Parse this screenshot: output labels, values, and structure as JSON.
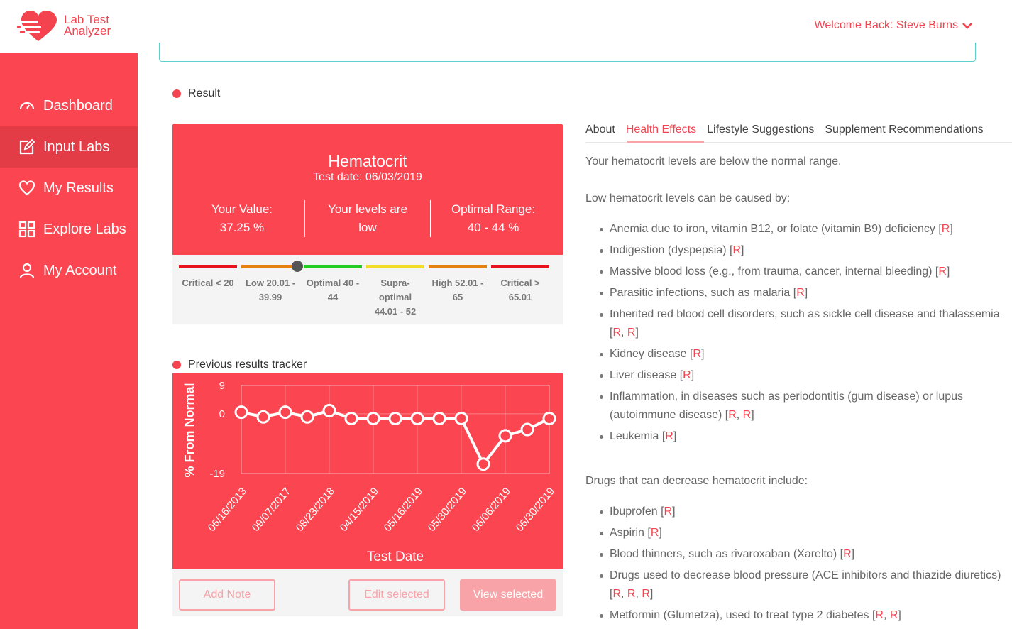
{
  "app": {
    "logo_line1": "Lab Test",
    "logo_line2": "Analyzer",
    "welcome": "Welcome Back: Steve Burns"
  },
  "sidebar": {
    "items": [
      {
        "label": "Dashboard",
        "icon": "gauge-icon"
      },
      {
        "label": "Input Labs",
        "icon": "edit-icon"
      },
      {
        "label": "My Results",
        "icon": "heart-icon"
      },
      {
        "label": "Explore Labs",
        "icon": "grid-icon"
      },
      {
        "label": "My Account",
        "icon": "user-icon"
      }
    ],
    "active_index": 1
  },
  "result": {
    "section_label": "Result",
    "title": "Hematocrit",
    "test_date": "Test date: 06/03/2019",
    "your_value_label": "Your Value:",
    "your_value": "37.25 %",
    "levels_label": "Your levels are",
    "levels_value": "low",
    "optimal_label": "Optimal Range:",
    "optimal_value": "40 - 44 %",
    "ranges": [
      {
        "l1": "Critical < 20",
        "l2": "",
        "l3": "",
        "color": "#e8131f"
      },
      {
        "l1": "Low 20.01 -",
        "l2": "39.99",
        "l3": "",
        "color": "#e5830e"
      },
      {
        "l1": "Optimal 40 -",
        "l2": "44",
        "l3": "",
        "color": "#22cc22"
      },
      {
        "l1": "Supra-",
        "l2": "optimal",
        "l3": "44.01 - 52",
        "color": "#f2dc2a"
      },
      {
        "l1": "High 52.01 -",
        "l2": "65",
        "l3": "",
        "color": "#e5830e"
      },
      {
        "l1": "Critical >",
        "l2": "65.01",
        "l3": "",
        "color": "#e8131f"
      }
    ]
  },
  "tracker": {
    "section_label": "Previous results tracker",
    "add_note": "Add Note",
    "edit_selected": "Edit selected",
    "view_selected": "View selected"
  },
  "chart_data": {
    "type": "line",
    "ylabel": "% From Normal",
    "xlabel": "Test Date",
    "yticks": [
      "9",
      "0",
      "-19"
    ],
    "ylim": [
      -19,
      9
    ],
    "xticks": [
      "06/16/2013",
      "09/07/2017",
      "08/23/2018",
      "04/15/2019",
      "05/16/2019",
      "05/30/2019",
      "06/06/2019",
      "06/30/2019"
    ],
    "values": [
      0.5,
      -1,
      0.5,
      -1,
      1,
      -1.5,
      -1.5,
      -1.5,
      -1.5,
      -1.5,
      -1.5,
      -16,
      -7,
      -5,
      -1.5
    ],
    "grid": true
  },
  "tabs": {
    "items": [
      "About",
      "Health Effects",
      "Lifestyle Suggestions",
      "Supplement Recommendations"
    ],
    "active_index": 1
  },
  "health": {
    "intro": "Your hematocrit levels are below the normal range.",
    "causes_heading": "Low hematocrit levels can be caused by:",
    "causes": [
      {
        "text": "Anemia due to iron, vitamin B12, or folate (vitamin B9) deficiency",
        "refs": "R"
      },
      {
        "text": "Indigestion (dyspepsia)",
        "refs": "R"
      },
      {
        "text": "Massive blood loss (e.g., from trauma, cancer, internal bleeding)",
        "refs": "R"
      },
      {
        "text": "Parasitic infections, such as malaria",
        "refs": "R"
      },
      {
        "text": "Inherited red blood cell disorders, such as sickle cell disease and thalassemia",
        "refs": "R, R"
      },
      {
        "text": "Kidney disease",
        "refs": "R"
      },
      {
        "text": "Liver disease",
        "refs": "R"
      },
      {
        "text": "Inflammation, in diseases such as periodontitis (gum disease) or lupus (autoimmune disease)",
        "refs": "R, R"
      },
      {
        "text": "Leukemia",
        "refs": "R"
      }
    ],
    "drugs_heading": "Drugs that can decrease hematocrit include:",
    "drugs": [
      {
        "text": "Ibuprofen",
        "refs": "R"
      },
      {
        "text": "Aspirin",
        "refs": "R"
      },
      {
        "text": "Blood thinners, such as rivaroxaban (Xarelto)",
        "refs": "R"
      },
      {
        "text": "Drugs used to decrease blood pressure (ACE inhibitors and thiazide diuretics)",
        "refs": "R, R, R"
      },
      {
        "text": "Metformin (Glumetza), used to treat type 2 diabetes",
        "refs": "R, R"
      }
    ]
  }
}
